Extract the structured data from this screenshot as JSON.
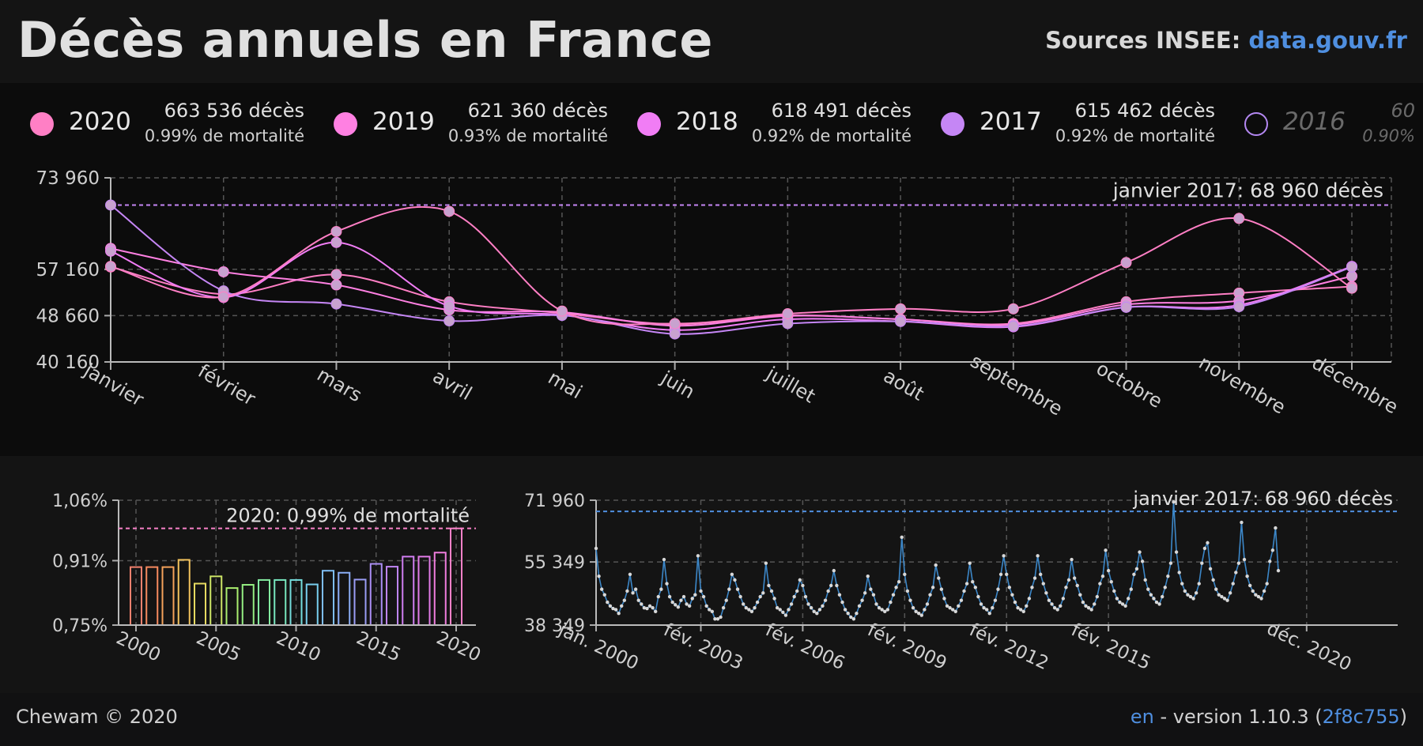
{
  "header": {
    "title": "Décès annuels en France",
    "sources_label": "Sources INSEE:",
    "sources_link": "data.gouv.fr"
  },
  "legend": [
    {
      "year": "2020",
      "deaths": "663 536 décès",
      "rate": "0.99% de mortalité",
      "color": "#ff7fc5",
      "active": true
    },
    {
      "year": "2019",
      "deaths": "621 360 décès",
      "rate": "0.93% de mortalité",
      "color": "#ff80e2",
      "active": true
    },
    {
      "year": "2018",
      "deaths": "618 491 décès",
      "rate": "0.92% de mortalité",
      "color": "#f17df5",
      "active": true
    },
    {
      "year": "2017",
      "deaths": "615 462 décès",
      "rate": "0.92% de mortalité",
      "color": "#c586f5",
      "active": true
    },
    {
      "year": "2016",
      "deaths": "60",
      "rate": "0.90%",
      "color": "#b488f2",
      "active": false
    }
  ],
  "chart_data": [
    {
      "type": "line",
      "categories": [
        "janvier",
        "février",
        "mars",
        "avril",
        "mai",
        "juin",
        "juillet",
        "août",
        "septembre",
        "octobre",
        "novembre",
        "décembre"
      ],
      "series": [
        {
          "name": "2020",
          "color": "#ff7fc5",
          "values": [
            57600,
            52600,
            56200,
            51200,
            49100,
            47100,
            48700,
            48000,
            47200,
            51200,
            52800,
            54000
          ]
        },
        {
          "name": "2019",
          "color": "#ff80e2",
          "values": [
            61000,
            56700,
            54300,
            49700,
            49300,
            46800,
            48600,
            48000,
            47000,
            50700,
            51400,
            55900
          ]
        },
        {
          "name": "2018",
          "color": "#f17df5",
          "values": [
            60500,
            52000,
            62100,
            50400,
            48800,
            46000,
            48000,
            47600,
            46600,
            50200,
            50600,
            57700
          ]
        },
        {
          "name": "2017",
          "color": "#c586f5",
          "values": [
            68960,
            53200,
            50800,
            47700,
            48700,
            45300,
            47200,
            47600,
            46700,
            50200,
            50300,
            57600
          ]
        },
        {
          "name": "2020",
          "color": "#ff7fc5",
          "values": [
            57700,
            52100,
            64100,
            67800,
            49500,
            47200,
            49000,
            49900,
            49900,
            58400,
            66500,
            53700
          ]
        }
      ],
      "yticks": [
        "73 960",
        "57 160",
        "48 660",
        "40 160"
      ],
      "ylim": [
        40160,
        73960
      ],
      "reference": {
        "value": 68960,
        "label": "janvier 2017: 68 960 décès"
      }
    },
    {
      "type": "bar",
      "categories": [
        "2000",
        "2001",
        "2002",
        "2003",
        "2004",
        "2005",
        "2006",
        "2007",
        "2008",
        "2009",
        "2010",
        "2011",
        "2012",
        "2013",
        "2014",
        "2015",
        "2016",
        "2017",
        "2018",
        "2019",
        "2020"
      ],
      "values": [
        0.894,
        0.894,
        0.894,
        0.912,
        0.853,
        0.871,
        0.842,
        0.85,
        0.862,
        0.862,
        0.862,
        0.851,
        0.885,
        0.88,
        0.863,
        0.902,
        0.895,
        0.92,
        0.92,
        0.93,
        0.99
      ],
      "xticks": [
        "2000",
        "2005",
        "2010",
        "2015",
        "2020"
      ],
      "yticks": [
        "1,06%",
        "0,91%",
        "0,75%"
      ],
      "ylim": [
        0.75,
        1.06
      ],
      "reference": {
        "value": 0.99,
        "label": "2020: 0,99% de mortalité"
      }
    },
    {
      "type": "line",
      "x_start": "janv. 2000",
      "x_end": "déc. 2020",
      "xticks": [
        {
          "label": "jan. 2000",
          "index": 0
        },
        {
          "label": "fév. 2003",
          "index": 37
        },
        {
          "label": "fév. 2006",
          "index": 73
        },
        {
          "label": "fév. 2009",
          "index": 109
        },
        {
          "label": "fév. 2012",
          "index": 145
        },
        {
          "label": "fév. 2015",
          "index": 181
        },
        {
          "label": "déc. 2020",
          "index": 251
        }
      ],
      "yticks": [
        "71 960",
        "55 349",
        "38 349"
      ],
      "ylim": [
        38349,
        71960
      ],
      "color": "#3c87c8",
      "values": [
        59000,
        51500,
        48000,
        46500,
        44500,
        43500,
        42800,
        42500,
        41500,
        43500,
        45000,
        47500,
        52000,
        47000,
        48000,
        45000,
        44000,
        43000,
        42800,
        43500,
        43000,
        42000,
        46000,
        48000,
        56000,
        49500,
        46000,
        44500,
        43800,
        43200,
        45000,
        46000,
        44000,
        43500,
        45500,
        46500,
        57000,
        47500,
        46000,
        43500,
        42500,
        42000,
        40000,
        40000,
        40500,
        43000,
        45000,
        48000,
        52000,
        50500,
        48000,
        46000,
        44000,
        43000,
        42500,
        42000,
        43000,
        44500,
        46000,
        47000,
        55000,
        49000,
        47500,
        45500,
        43000,
        42500,
        41800,
        41000,
        42500,
        44000,
        46000,
        47500,
        50500,
        49000,
        46000,
        44000,
        43000,
        42000,
        41500,
        42500,
        43500,
        45000,
        47500,
        49000,
        53000,
        49000,
        46500,
        44500,
        42500,
        41500,
        40500,
        40000,
        41500,
        43500,
        45000,
        47000,
        51500,
        48000,
        46500,
        44000,
        43000,
        42500,
        42000,
        42500,
        44500,
        46500,
        48500,
        50000,
        62000,
        52000,
        47500,
        45000,
        43000,
        42000,
        41500,
        41000,
        42500,
        44000,
        46500,
        48500,
        54500,
        51000,
        48000,
        45500,
        43500,
        43000,
        42500,
        42000,
        43500,
        45000,
        47500,
        49500,
        55000,
        50000,
        48500,
        46000,
        44000,
        43000,
        42500,
        41500,
        43000,
        45000,
        48000,
        52000,
        57000,
        52000,
        48500,
        46500,
        44500,
        43000,
        42500,
        42000,
        43500,
        45500,
        48500,
        51000,
        57000,
        52000,
        49500,
        47000,
        45000,
        44000,
        43000,
        42500,
        43500,
        45500,
        48500,
        50500,
        56000,
        51000,
        49000,
        46500,
        44500,
        43500,
        43000,
        42500,
        44000,
        46000,
        49500,
        51500,
        58500,
        53000,
        50000,
        47500,
        45500,
        44500,
        44000,
        43500,
        45500,
        48000,
        52000,
        53500,
        58000,
        55500,
        50500,
        48000,
        46500,
        45500,
        44500,
        44000,
        46000,
        48500,
        51500,
        55000,
        71500,
        58000,
        52500,
        49500,
        47500,
        46500,
        46000,
        45500,
        47000,
        49500,
        55000,
        59000,
        60500,
        53500,
        50500,
        48000,
        46500,
        46000,
        45500,
        45000,
        47000,
        49500,
        52500,
        55000,
        66000,
        56000,
        51500,
        49000,
        47500,
        46500,
        46000,
        45500,
        47500,
        49500,
        55500,
        58500,
        64500,
        53000
      ]
    }
  ],
  "footer": {
    "copyright": "Chewam © 2020",
    "lang": "en",
    "version_text": " - version 1.10.3 (",
    "commit": "2f8c755",
    "close_paren": ")"
  }
}
